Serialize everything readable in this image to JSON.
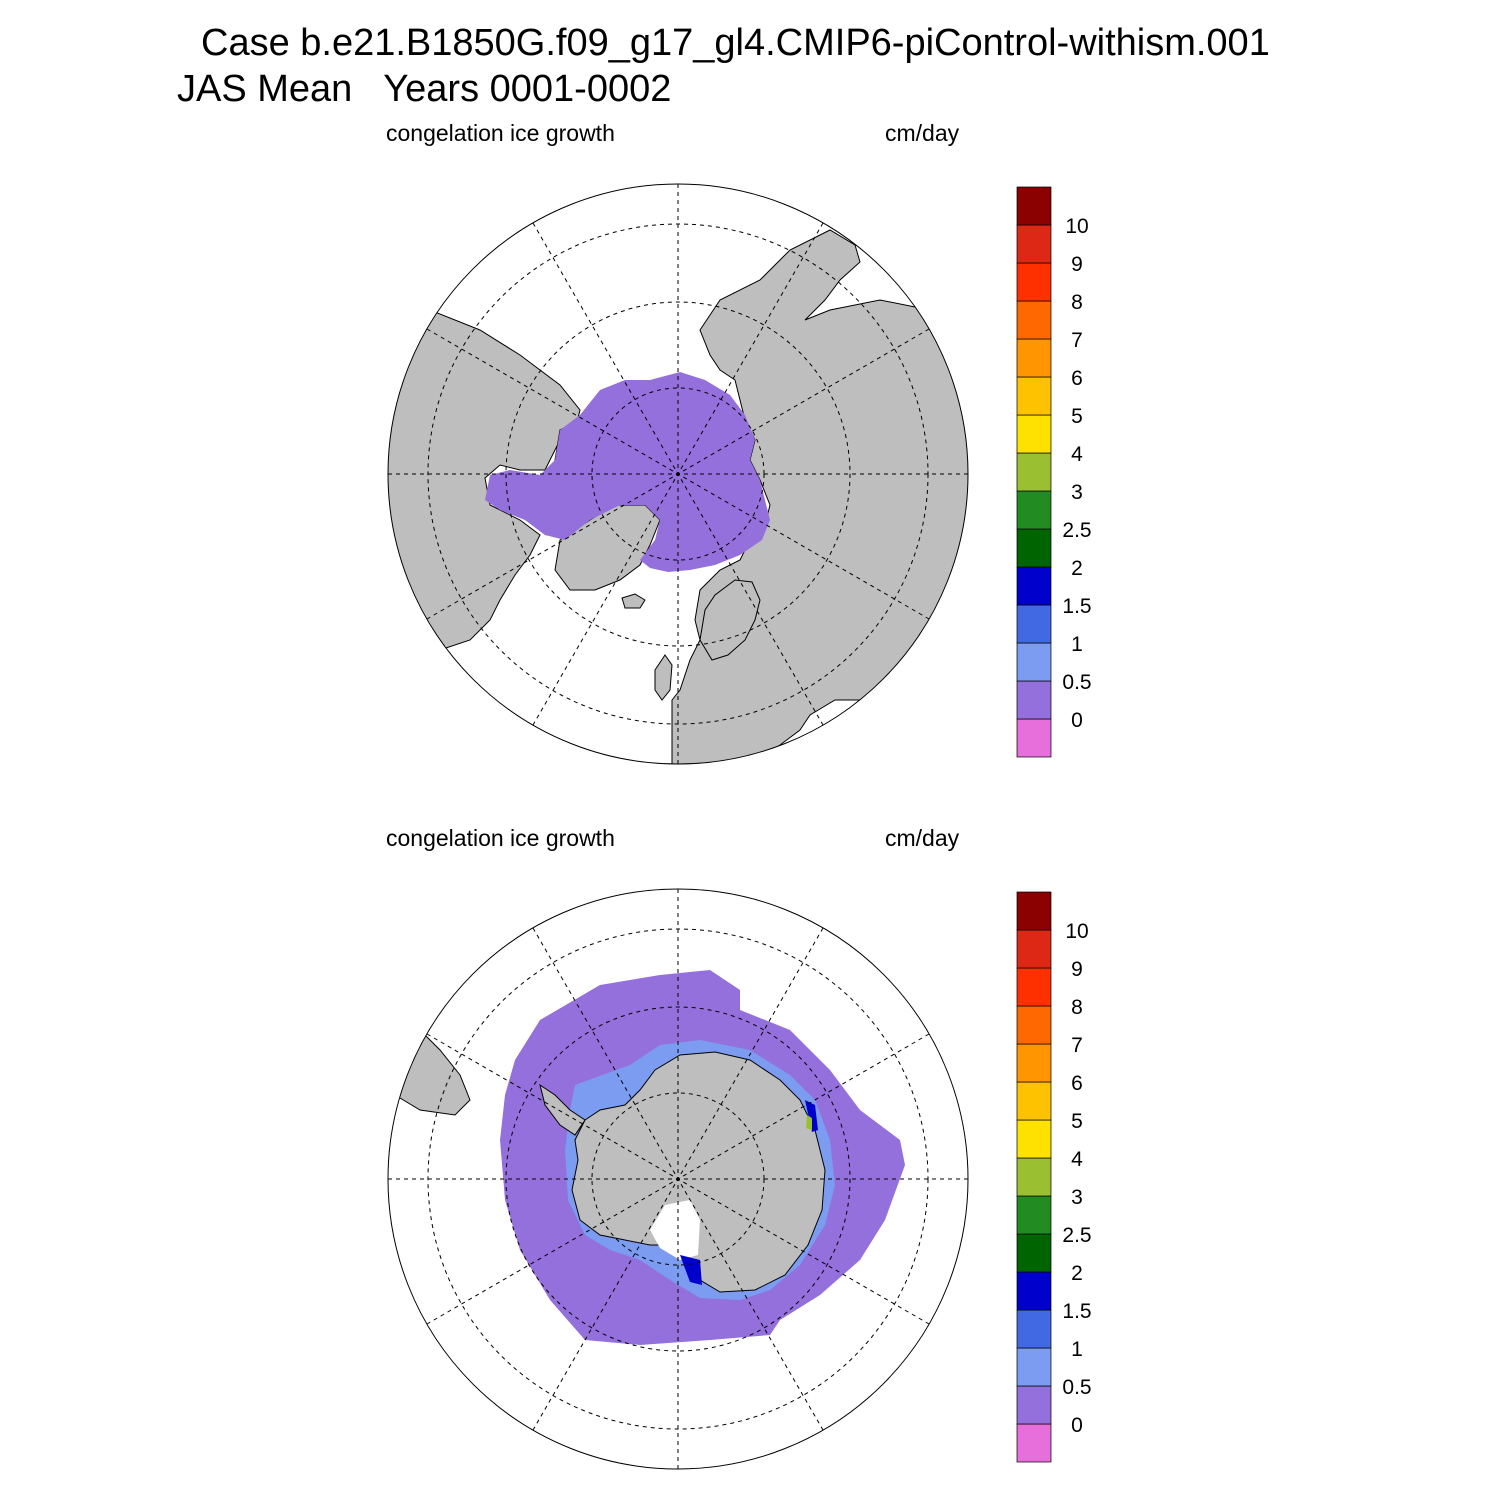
{
  "title": {
    "line1": "Case b.e21.B1850G.f09_g17_gl4.CMIP6-piControl-withism.001",
    "line2": "JAS Mean   Years 0001-0002"
  },
  "colors": {
    "land": "#bebebe",
    "gray_outline": "#000000",
    "bins": [
      "#e66fdc",
      "#9370db",
      "#7b9cf0",
      "#4169e1",
      "#0000cd",
      "#006400",
      "#228b22",
      "#9ac031",
      "#ffe100",
      "#ffc200",
      "#ff9500",
      "#ff6800",
      "#ff3000",
      "#dc2814",
      "#8b0000"
    ]
  },
  "colorbar": {
    "labels": [
      "0",
      "0.5",
      "1",
      "1.5",
      "2",
      "2.5",
      "3",
      "4",
      "5",
      "6",
      "7",
      "8",
      "9",
      "10"
    ]
  },
  "panels": [
    {
      "id": "north",
      "variable": "congelation ice growth",
      "units": "cm/day"
    },
    {
      "id": "south",
      "variable": "congelation ice growth",
      "units": "cm/day"
    }
  ]
}
